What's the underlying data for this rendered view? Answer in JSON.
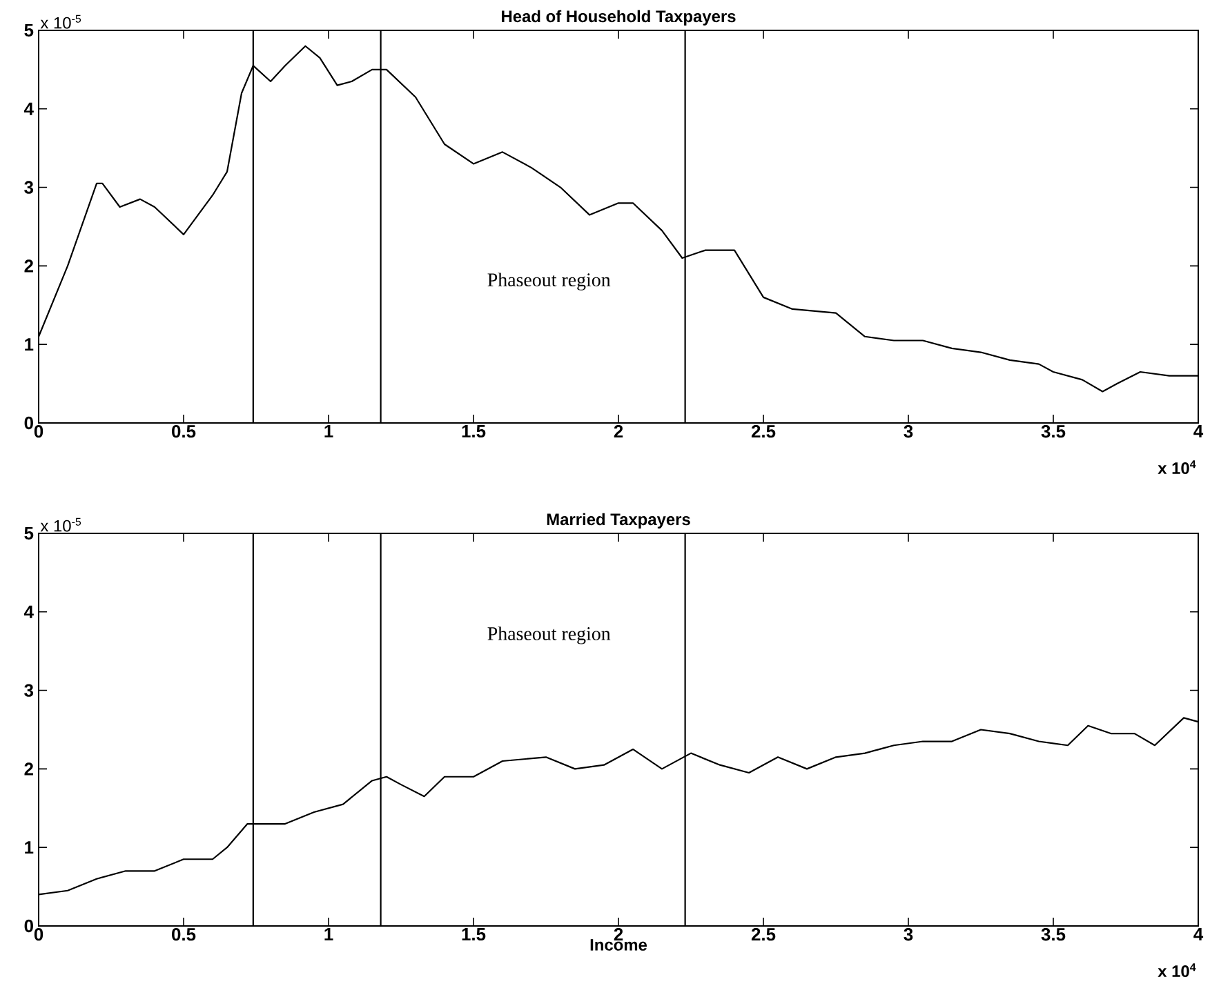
{
  "chart_data": [
    {
      "type": "line",
      "title": "Head of Household Taxpayers",
      "xlim": [
        0,
        4
      ],
      "ylim": [
        0,
        5
      ],
      "xticks": [
        0,
        0.5,
        1,
        1.5,
        2,
        2.5,
        3,
        3.5,
        4
      ],
      "yticks": [
        0,
        1,
        2,
        3,
        4,
        5
      ],
      "grid": false,
      "marker": "none",
      "line_style": "solid",
      "series": [
        {
          "color": "#000000",
          "x": [
            0,
            0.1,
            0.2,
            0.22,
            0.28,
            0.35,
            0.4,
            0.5,
            0.6,
            0.65,
            0.7,
            0.74,
            0.8,
            0.85,
            0.92,
            0.97,
            1.03,
            1.08,
            1.15,
            1.2,
            1.3,
            1.4,
            1.5,
            1.6,
            1.7,
            1.8,
            1.9,
            2.0,
            2.05,
            2.15,
            2.22,
            2.3,
            2.4,
            2.5,
            2.6,
            2.75,
            2.85,
            2.95,
            3.05,
            3.15,
            3.25,
            3.35,
            3.45,
            3.5,
            3.6,
            3.67,
            3.72,
            3.8,
            3.9,
            4.0
          ],
          "values": [
            1.1,
            2.0,
            3.05,
            3.05,
            2.75,
            2.85,
            2.75,
            2.4,
            2.9,
            3.2,
            4.2,
            4.55,
            4.35,
            4.55,
            4.8,
            4.65,
            4.3,
            4.35,
            4.5,
            4.5,
            4.15,
            3.55,
            3.3,
            3.45,
            3.25,
            3.0,
            2.65,
            2.8,
            2.8,
            2.45,
            2.1,
            2.2,
            2.2,
            1.6,
            1.45,
            1.4,
            1.1,
            1.05,
            1.05,
            0.95,
            0.9,
            0.8,
            0.75,
            0.65,
            0.55,
            0.4,
            0.5,
            0.65,
            0.6,
            0.6
          ]
        }
      ],
      "ref_lines": [
        {
          "axis": "x",
          "value": 0.74,
          "color": "#000000"
        },
        {
          "axis": "x",
          "value": 1.18,
          "color": "#000000"
        },
        {
          "axis": "x",
          "value": 2.23,
          "color": "#000000"
        }
      ],
      "annotations": [
        "Phaseout region",
        "x 10$^{-5}$",
        "x 10$^{4}$"
      ]
    },
    {
      "type": "line",
      "title": "Married Taxpayers",
      "xlabel": "Income",
      "xlim": [
        0,
        4
      ],
      "ylim": [
        0,
        5
      ],
      "xticks": [
        0,
        0.5,
        1,
        1.5,
        2,
        2.5,
        3,
        3.5,
        4
      ],
      "yticks": [
        0,
        1,
        2,
        3,
        4,
        5
      ],
      "grid": false,
      "marker": "none",
      "line_style": "solid",
      "series": [
        {
          "color": "#000000",
          "x": [
            0,
            0.1,
            0.2,
            0.3,
            0.4,
            0.5,
            0.6,
            0.65,
            0.72,
            0.85,
            0.95,
            1.05,
            1.15,
            1.2,
            1.25,
            1.33,
            1.4,
            1.5,
            1.6,
            1.75,
            1.85,
            1.95,
            2.05,
            2.15,
            2.25,
            2.35,
            2.45,
            2.55,
            2.65,
            2.75,
            2.85,
            2.95,
            3.05,
            3.15,
            3.25,
            3.35,
            3.45,
            3.55,
            3.62,
            3.7,
            3.78,
            3.85,
            3.95,
            4.0
          ],
          "values": [
            0.4,
            0.45,
            0.6,
            0.7,
            0.7,
            0.85,
            0.85,
            1.0,
            1.3,
            1.3,
            1.45,
            1.55,
            1.85,
            1.9,
            1.8,
            1.65,
            1.9,
            1.9,
            2.1,
            2.15,
            2.0,
            2.05,
            2.25,
            2.0,
            2.2,
            2.05,
            1.95,
            2.15,
            2.0,
            2.15,
            2.2,
            2.3,
            2.35,
            2.35,
            2.5,
            2.45,
            2.35,
            2.3,
            2.55,
            2.45,
            2.45,
            2.3,
            2.65,
            2.6
          ]
        }
      ],
      "ref_lines": [
        {
          "axis": "x",
          "value": 0.74,
          "color": "#000000"
        },
        {
          "axis": "x",
          "value": 1.18,
          "color": "#000000"
        },
        {
          "axis": "x",
          "value": 2.23,
          "color": "#000000"
        }
      ],
      "annotations": [
        "Phaseout region",
        "x 10$^{-5}$",
        "x 10$^{4}$"
      ]
    }
  ]
}
